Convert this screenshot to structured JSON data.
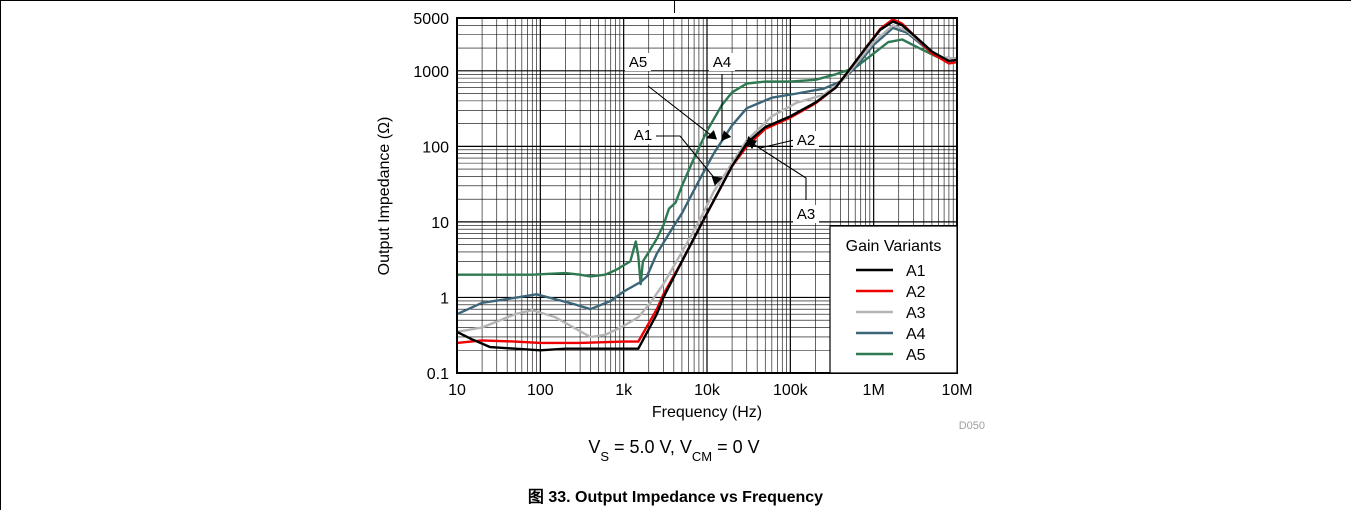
{
  "chart_data": {
    "type": "line",
    "title": "",
    "xlabel": "Frequency (Hz)",
    "ylabel": "Output Impedance (Ω)",
    "x_scale": "log",
    "y_scale": "log",
    "xlim": [
      10,
      10000000
    ],
    "ylim": [
      0.1,
      5000
    ],
    "grid": true,
    "x_ticks": [
      {
        "value": 10,
        "label": "10"
      },
      {
        "value": 100,
        "label": "100"
      },
      {
        "value": 1000,
        "label": "1k"
      },
      {
        "value": 10000,
        "label": "10k"
      },
      {
        "value": 100000,
        "label": "100k"
      },
      {
        "value": 1000000,
        "label": "1M"
      },
      {
        "value": 10000000,
        "label": "10M"
      }
    ],
    "y_ticks": [
      {
        "value": 0.1,
        "label": "0.1"
      },
      {
        "value": 1,
        "label": "1"
      },
      {
        "value": 10,
        "label": "10"
      },
      {
        "value": 100,
        "label": "100"
      },
      {
        "value": 1000,
        "label": "1000"
      },
      {
        "value": 5000,
        "label": "5000"
      }
    ],
    "legend": {
      "title": "Gain Variants",
      "position": "bottom-right"
    },
    "series": [
      {
        "name": "A1",
        "color": "#000000",
        "points": [
          [
            10,
            0.35
          ],
          [
            15,
            0.28
          ],
          [
            25,
            0.22
          ],
          [
            50,
            0.21
          ],
          [
            100,
            0.2
          ],
          [
            200,
            0.21
          ],
          [
            500,
            0.21
          ],
          [
            1500,
            0.21
          ],
          [
            2500,
            0.6
          ],
          [
            3000,
            1.0
          ],
          [
            5000,
            3
          ],
          [
            10000,
            13
          ],
          [
            20000,
            55
          ],
          [
            30000,
            110
          ],
          [
            50000,
            180
          ],
          [
            100000,
            250
          ],
          [
            200000,
            380
          ],
          [
            350000,
            600
          ],
          [
            500000,
            1000
          ],
          [
            800000,
            2000
          ],
          [
            1200000,
            3500
          ],
          [
            1700000,
            4500
          ],
          [
            2200000,
            4000
          ],
          [
            3000000,
            3000
          ],
          [
            5000000,
            1800
          ],
          [
            8000000,
            1350
          ],
          [
            10000000,
            1400
          ]
        ]
      },
      {
        "name": "A2",
        "color": "#ee0000",
        "points": [
          [
            10,
            0.25
          ],
          [
            20,
            0.27
          ],
          [
            50,
            0.26
          ],
          [
            100,
            0.25
          ],
          [
            300,
            0.25
          ],
          [
            1000,
            0.26
          ],
          [
            1500,
            0.26
          ],
          [
            2500,
            0.7
          ],
          [
            3000,
            1.1
          ],
          [
            5000,
            3
          ],
          [
            10000,
            13
          ],
          [
            20000,
            55
          ],
          [
            30000,
            100
          ],
          [
            50000,
            170
          ],
          [
            100000,
            240
          ],
          [
            200000,
            370
          ],
          [
            350000,
            600
          ],
          [
            500000,
            1000
          ],
          [
            800000,
            2000
          ],
          [
            1200000,
            3600
          ],
          [
            1700000,
            4800
          ],
          [
            2200000,
            4200
          ],
          [
            3000000,
            3000
          ],
          [
            5000000,
            1700
          ],
          [
            8000000,
            1250
          ],
          [
            10000000,
            1300
          ]
        ]
      },
      {
        "name": "A3",
        "color": "#b4b4b4",
        "points": [
          [
            10,
            0.35
          ],
          [
            20,
            0.4
          ],
          [
            50,
            0.6
          ],
          [
            80,
            0.68
          ],
          [
            150,
            0.55
          ],
          [
            250,
            0.4
          ],
          [
            400,
            0.3
          ],
          [
            600,
            0.32
          ],
          [
            1000,
            0.42
          ],
          [
            1500,
            0.55
          ],
          [
            2000,
            0.8
          ],
          [
            3000,
            1.5
          ],
          [
            5000,
            4
          ],
          [
            8000,
            10
          ],
          [
            12000,
            25
          ],
          [
            20000,
            60
          ],
          [
            30000,
            120
          ],
          [
            60000,
            250
          ],
          [
            120000,
            380
          ],
          [
            250000,
            480
          ],
          [
            400000,
            700
          ],
          [
            600000,
            1200
          ],
          [
            1000000,
            2400
          ],
          [
            1700000,
            4000
          ],
          [
            2500000,
            3400
          ],
          [
            4000000,
            2200
          ],
          [
            6000000,
            1500
          ],
          [
            10000000,
            1450
          ]
        ]
      },
      {
        "name": "A4",
        "color": "#3b6578",
        "points": [
          [
            10,
            0.6
          ],
          [
            20,
            0.85
          ],
          [
            40,
            0.95
          ],
          [
            90,
            1.1
          ],
          [
            150,
            0.95
          ],
          [
            250,
            0.82
          ],
          [
            400,
            0.7
          ],
          [
            700,
            0.9
          ],
          [
            1000,
            1.2
          ],
          [
            1600,
            1.6
          ],
          [
            1900,
            1.9
          ],
          [
            2500,
            3.8
          ],
          [
            3500,
            7
          ],
          [
            5000,
            13
          ],
          [
            8000,
            35
          ],
          [
            12000,
            80
          ],
          [
            20000,
            190
          ],
          [
            30000,
            320
          ],
          [
            60000,
            440
          ],
          [
            120000,
            500
          ],
          [
            250000,
            580
          ],
          [
            400000,
            720
          ],
          [
            600000,
            1100
          ],
          [
            1000000,
            2200
          ],
          [
            1700000,
            3700
          ],
          [
            2500000,
            3200
          ],
          [
            4000000,
            2100
          ],
          [
            6000000,
            1500
          ],
          [
            10000000,
            1450
          ]
        ]
      },
      {
        "name": "A5",
        "color": "#2e7852",
        "points": [
          [
            10,
            2.0
          ],
          [
            30,
            2.0
          ],
          [
            80,
            2.0
          ],
          [
            120,
            2.05
          ],
          [
            200,
            2.1
          ],
          [
            300,
            2.0
          ],
          [
            400,
            1.9
          ],
          [
            600,
            2.0
          ],
          [
            800,
            2.3
          ],
          [
            1200,
            3.0
          ],
          [
            1400,
            5.5
          ],
          [
            1500,
            3.5
          ],
          [
            1600,
            1.5
          ],
          [
            1700,
            3.0
          ],
          [
            2000,
            4.0
          ],
          [
            2500,
            6.0
          ],
          [
            3000,
            9.0
          ],
          [
            3500,
            15
          ],
          [
            4200,
            18
          ],
          [
            5000,
            30
          ],
          [
            7000,
            70
          ],
          [
            10000,
            160
          ],
          [
            15000,
            350
          ],
          [
            20000,
            520
          ],
          [
            30000,
            680
          ],
          [
            50000,
            720
          ],
          [
            100000,
            720
          ],
          [
            200000,
            760
          ],
          [
            350000,
            900
          ],
          [
            600000,
            1100
          ],
          [
            1000000,
            1700
          ],
          [
            1500000,
            2400
          ],
          [
            2200000,
            2600
          ],
          [
            3500000,
            2000
          ],
          [
            6000000,
            1500
          ],
          [
            10000000,
            1450
          ]
        ]
      }
    ],
    "annotations": [
      {
        "text": "A5",
        "series": "A5",
        "target": [
          10000,
          130
        ]
      },
      {
        "text": "A4",
        "series": "A4",
        "target": [
          15000,
          120
        ]
      },
      {
        "text": "A1",
        "series": "A1",
        "target": [
          15000,
          38
        ]
      },
      {
        "text": "A2",
        "series": "A2",
        "target": [
          30000,
          120
        ]
      },
      {
        "text": "A3",
        "series": "A3",
        "target": [
          30000,
          100
        ]
      }
    ],
    "watermark": "D050"
  },
  "condition": {
    "prefix": "V",
    "sub1": "S",
    "mid": " = 5.0 V, V",
    "sub2": "CM",
    "suffix": " = 0 V"
  },
  "caption": "图 33. Output Impedance vs Frequency"
}
